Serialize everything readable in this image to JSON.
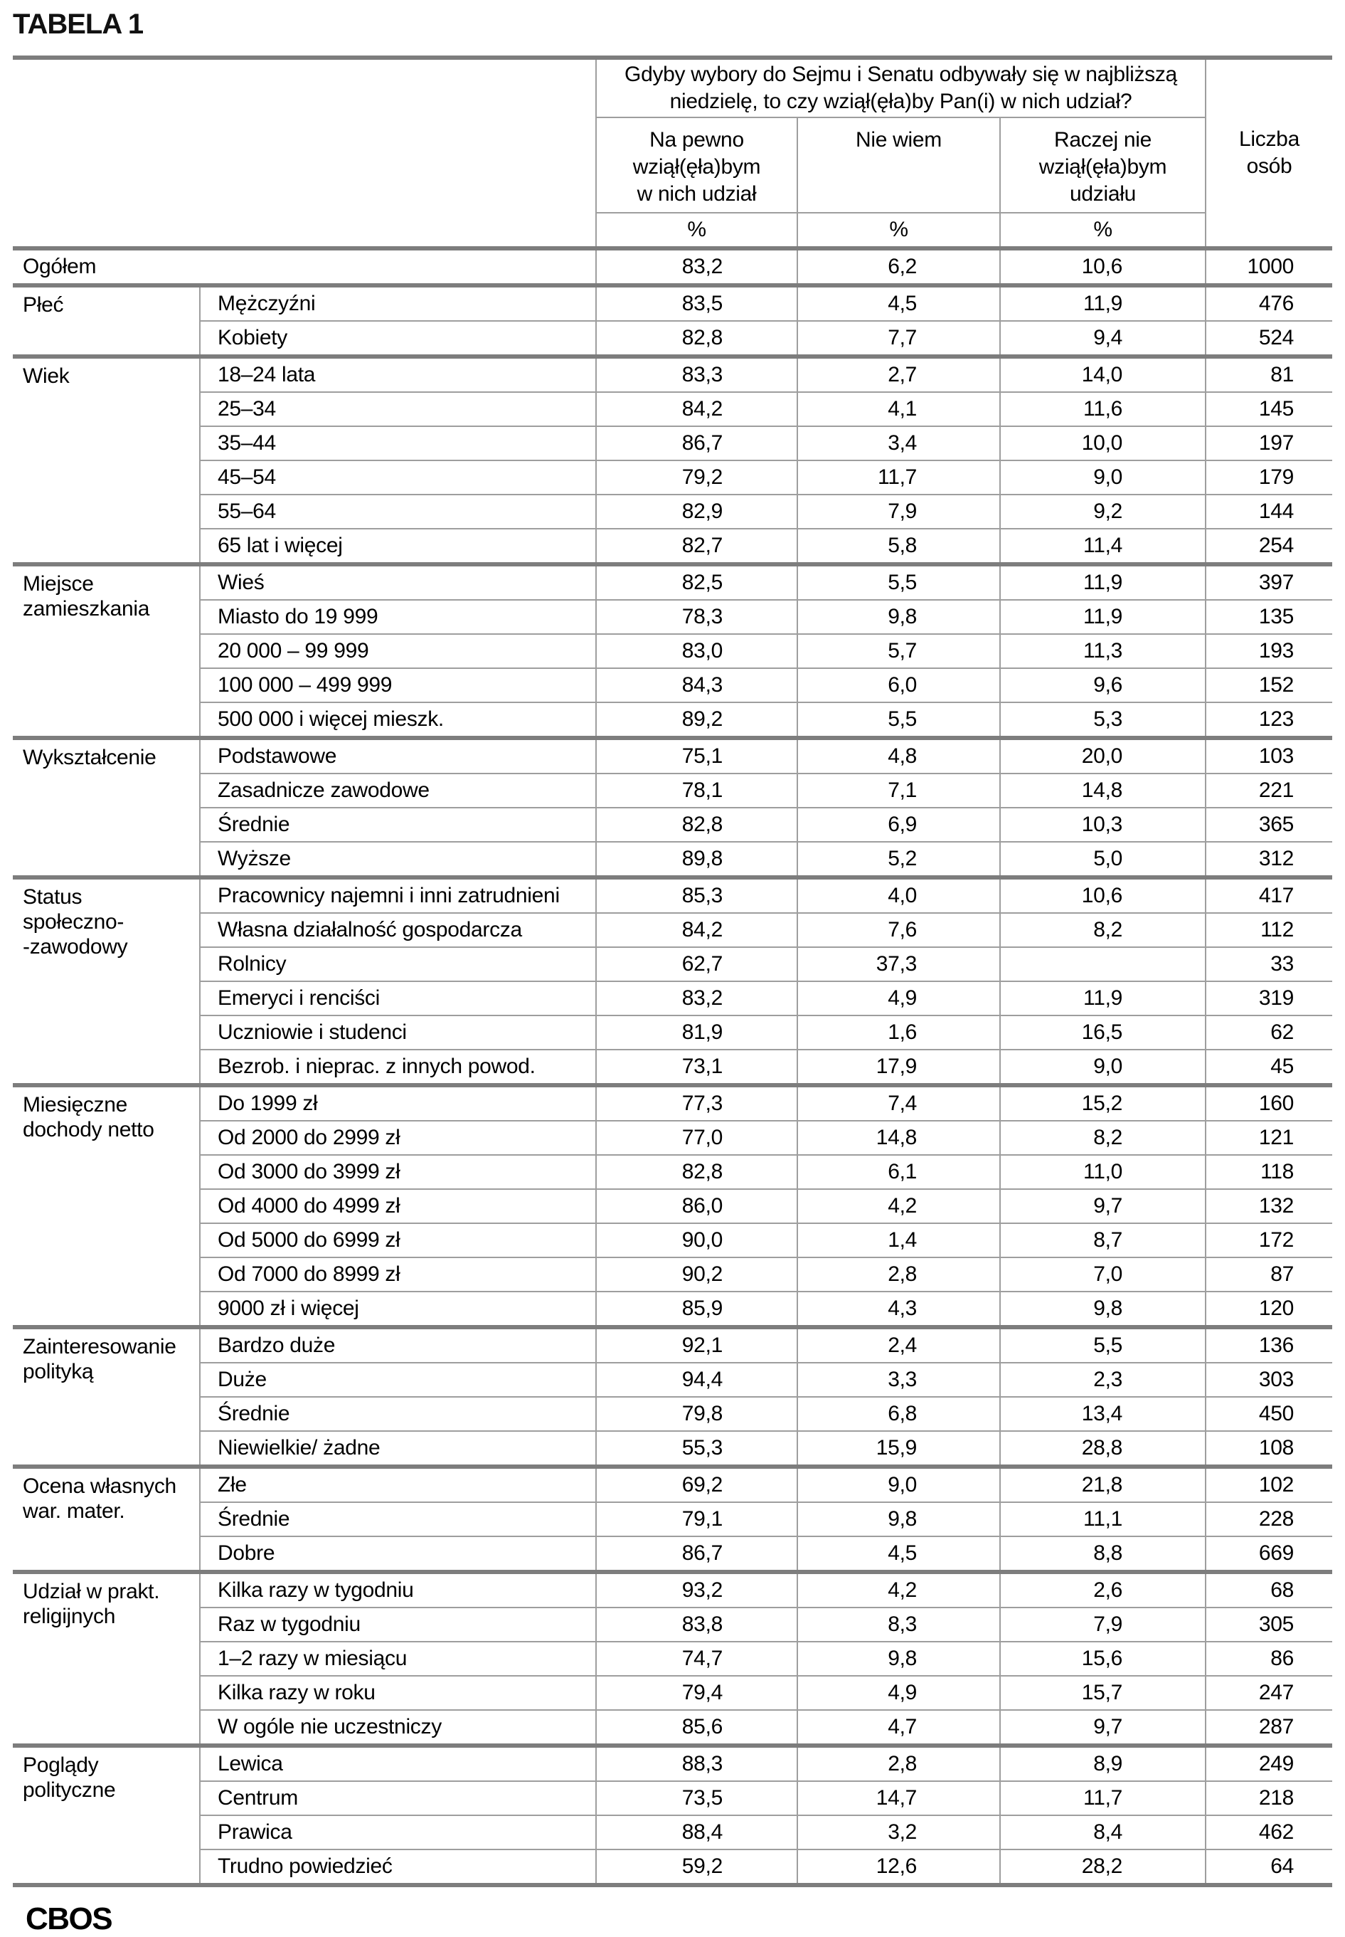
{
  "title": "TABELA 1",
  "style": {
    "background": "#ffffff",
    "text_color": "#000000",
    "border_thick_color": "#7d7d7d",
    "border_thin_color": "#9e9e9e"
  },
  "table": {
    "header": {
      "question": "Gdyby wybory do Sejmu i Senatu odbywały się w najbliższą\nniedzielę, to czy wziął(ęła)by Pan(i) w nich udział?",
      "columns": [
        "Na pewno\nwziął(ęła)bym\nw nich udział",
        "Nie wiem",
        "Raczej nie\nwziął(ęła)bym\nudziału"
      ],
      "units": [
        "%",
        "%",
        "%"
      ],
      "count_column": "Liczba osób"
    },
    "total_row": {
      "label": "Ogółem",
      "values": [
        "83,2",
        "6,2",
        "10,6"
      ],
      "n": "1000"
    },
    "sections": [
      {
        "category": "Płeć",
        "rows": [
          {
            "label": "Mężczyźni",
            "values": [
              "83,5",
              "4,5",
              "11,9"
            ],
            "n": "476"
          },
          {
            "label": "Kobiety",
            "values": [
              "82,8",
              "7,7",
              "9,4"
            ],
            "n": "524"
          }
        ]
      },
      {
        "category": "Wiek",
        "rows": [
          {
            "label": "18–24 lata",
            "values": [
              "83,3",
              "2,7",
              "14,0"
            ],
            "n": "81"
          },
          {
            "label": "25–34",
            "values": [
              "84,2",
              "4,1",
              "11,6"
            ],
            "n": "145"
          },
          {
            "label": "35–44",
            "values": [
              "86,7",
              "3,4",
              "10,0"
            ],
            "n": "197"
          },
          {
            "label": "45–54",
            "values": [
              "79,2",
              "11,7",
              "9,0"
            ],
            "n": "179"
          },
          {
            "label": "55–64",
            "values": [
              "82,9",
              "7,9",
              "9,2"
            ],
            "n": "144"
          },
          {
            "label": "65 lat i więcej",
            "values": [
              "82,7",
              "5,8",
              "11,4"
            ],
            "n": "254"
          }
        ]
      },
      {
        "category": "Miejsce\nzamieszkania",
        "rows": [
          {
            "label": "Wieś",
            "values": [
              "82,5",
              "5,5",
              "11,9"
            ],
            "n": "397"
          },
          {
            "label": "Miasto do 19 999",
            "values": [
              "78,3",
              "9,8",
              "11,9"
            ],
            "n": "135"
          },
          {
            "label": "20 000 – 99 999",
            "values": [
              "83,0",
              "5,7",
              "11,3"
            ],
            "n": "193"
          },
          {
            "label": "100 000 – 499 999",
            "values": [
              "84,3",
              "6,0",
              "9,6"
            ],
            "n": "152"
          },
          {
            "label": "500 000 i więcej mieszk.",
            "values": [
              "89,2",
              "5,5",
              "5,3"
            ],
            "n": "123"
          }
        ]
      },
      {
        "category": "Wykształcenie",
        "rows": [
          {
            "label": "Podstawowe",
            "values": [
              "75,1",
              "4,8",
              "20,0"
            ],
            "n": "103"
          },
          {
            "label": "Zasadnicze zawodowe",
            "values": [
              "78,1",
              "7,1",
              "14,8"
            ],
            "n": "221"
          },
          {
            "label": "Średnie",
            "values": [
              "82,8",
              "6,9",
              "10,3"
            ],
            "n": "365"
          },
          {
            "label": "Wyższe",
            "values": [
              "89,8",
              "5,2",
              "5,0"
            ],
            "n": "312"
          }
        ]
      },
      {
        "category": "Status\nspołeczno-\n-zawodowy",
        "rows": [
          {
            "label": "Pracownicy najemni i inni zatrudnieni",
            "values": [
              "85,3",
              "4,0",
              "10,6"
            ],
            "n": "417"
          },
          {
            "label": "Własna działalność gospodarcza",
            "values": [
              "84,2",
              "7,6",
              "8,2"
            ],
            "n": "112"
          },
          {
            "label": "Rolnicy",
            "values": [
              "62,7",
              "37,3",
              ""
            ],
            "n": "33"
          },
          {
            "label": "Emeryci i renciści",
            "values": [
              "83,2",
              "4,9",
              "11,9"
            ],
            "n": "319"
          },
          {
            "label": "Uczniowie i studenci",
            "values": [
              "81,9",
              "1,6",
              "16,5"
            ],
            "n": "62"
          },
          {
            "label": "Bezrob. i nieprac. z innych powod.",
            "values": [
              "73,1",
              "17,9",
              "9,0"
            ],
            "n": "45"
          }
        ]
      },
      {
        "category": "Miesięczne\ndochody netto",
        "rows": [
          {
            "label": "Do 1999 zł",
            "values": [
              "77,3",
              "7,4",
              "15,2"
            ],
            "n": "160"
          },
          {
            "label": "Od 2000 do 2999 zł",
            "values": [
              "77,0",
              "14,8",
              "8,2"
            ],
            "n": "121"
          },
          {
            "label": "Od 3000 do 3999 zł",
            "values": [
              "82,8",
              "6,1",
              "11,0"
            ],
            "n": "118"
          },
          {
            "label": "Od 4000 do 4999 zł",
            "values": [
              "86,0",
              "4,2",
              "9,7"
            ],
            "n": "132"
          },
          {
            "label": "Od 5000 do 6999 zł",
            "values": [
              "90,0",
              "1,4",
              "8,7"
            ],
            "n": "172"
          },
          {
            "label": "Od 7000 do 8999 zł",
            "values": [
              "90,2",
              "2,8",
              "7,0"
            ],
            "n": "87"
          },
          {
            "label": "9000 zł i więcej",
            "values": [
              "85,9",
              "4,3",
              "9,8"
            ],
            "n": "120"
          }
        ]
      },
      {
        "category": "Zainteresowanie\npolityką",
        "rows": [
          {
            "label": "Bardzo duże",
            "values": [
              "92,1",
              "2,4",
              "5,5"
            ],
            "n": "136"
          },
          {
            "label": "Duże",
            "values": [
              "94,4",
              "3,3",
              "2,3"
            ],
            "n": "303"
          },
          {
            "label": "Średnie",
            "values": [
              "79,8",
              "6,8",
              "13,4"
            ],
            "n": "450"
          },
          {
            "label": "Niewielkie/ żadne",
            "values": [
              "55,3",
              "15,9",
              "28,8"
            ],
            "n": "108"
          }
        ]
      },
      {
        "category": "Ocena własnych\nwar. mater.",
        "rows": [
          {
            "label": "Złe",
            "values": [
              "69,2",
              "9,0",
              "21,8"
            ],
            "n": "102"
          },
          {
            "label": "Średnie",
            "values": [
              "79,1",
              "9,8",
              "11,1"
            ],
            "n": "228"
          },
          {
            "label": "Dobre",
            "values": [
              "86,7",
              "4,5",
              "8,8"
            ],
            "n": "669"
          }
        ]
      },
      {
        "category": "Udział w prakt.\nreligijnych",
        "rows": [
          {
            "label": "Kilka razy w tygodniu",
            "values": [
              "93,2",
              "4,2",
              "2,6"
            ],
            "n": "68"
          },
          {
            "label": "Raz w tygodniu",
            "values": [
              "83,8",
              "8,3",
              "7,9"
            ],
            "n": "305"
          },
          {
            "label": "1–2 razy w miesiącu",
            "values": [
              "74,7",
              "9,8",
              "15,6"
            ],
            "n": "86"
          },
          {
            "label": "Kilka razy w roku",
            "values": [
              "79,4",
              "4,9",
              "15,7"
            ],
            "n": "247"
          },
          {
            "label": "W ogóle nie uczestniczy",
            "values": [
              "85,6",
              "4,7",
              "9,7"
            ],
            "n": "287"
          }
        ]
      },
      {
        "category": "Poglądy\npolityczne",
        "rows": [
          {
            "label": "Lewica",
            "values": [
              "88,3",
              "2,8",
              "8,9"
            ],
            "n": "249"
          },
          {
            "label": "Centrum",
            "values": [
              "73,5",
              "14,7",
              "11,7"
            ],
            "n": "218"
          },
          {
            "label": "Prawica",
            "values": [
              "88,4",
              "3,2",
              "8,4"
            ],
            "n": "462"
          },
          {
            "label": "Trudno powiedzieć",
            "values": [
              "59,2",
              "12,6",
              "28,2"
            ],
            "n": "64"
          }
        ]
      }
    ]
  },
  "footer": {
    "logo": "CBOS"
  }
}
